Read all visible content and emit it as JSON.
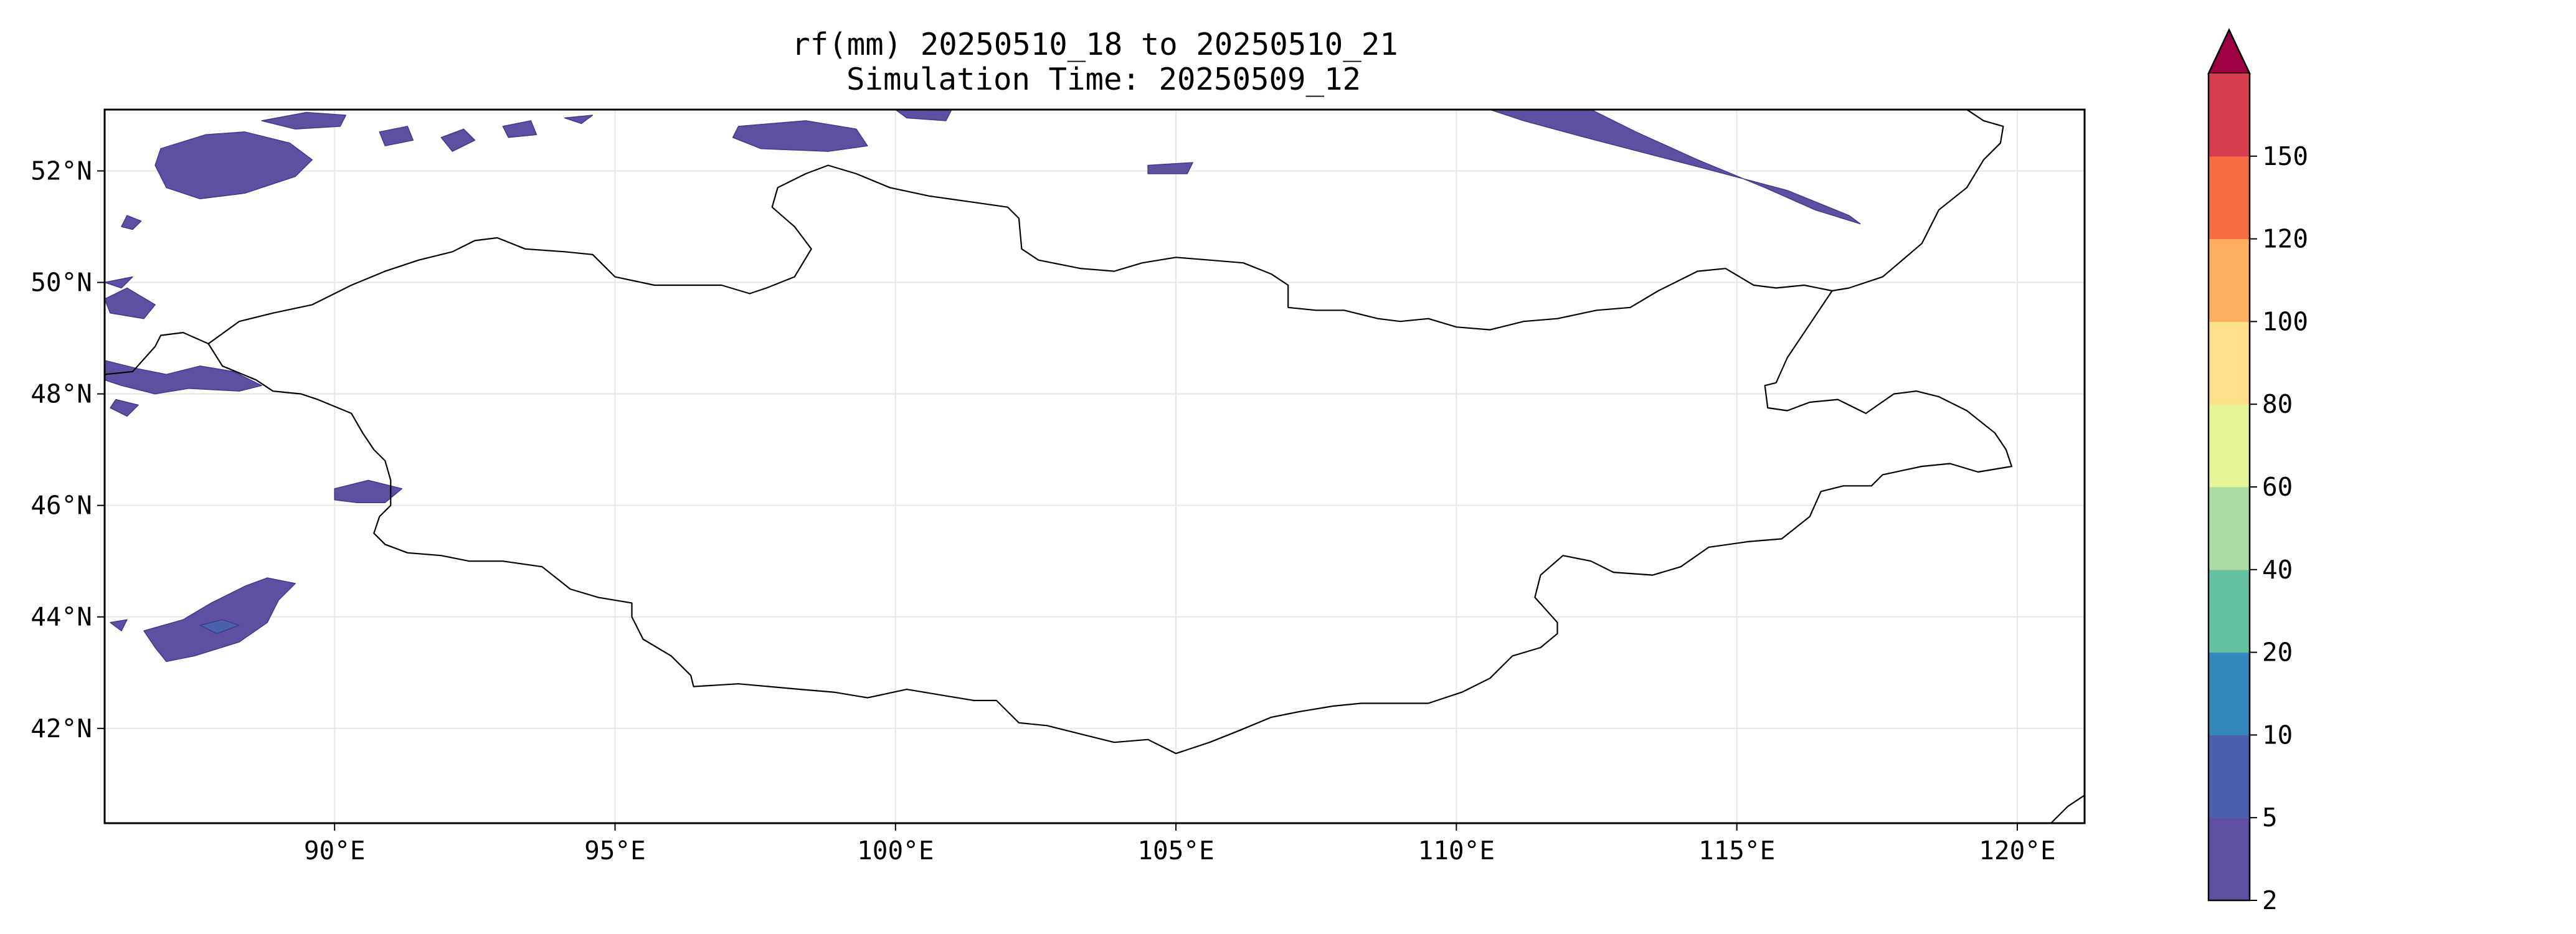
{
  "title": {
    "line1": "rf(mm) 20250510_18 to 20250510_21",
    "line2": "Simulation Time: 20250509_12"
  },
  "map": {
    "projection": "PlateCarree",
    "extent": {
      "lon_min": 85.9,
      "lon_max": 121.2,
      "lat_min": 40.3,
      "lat_max": 53.1
    },
    "gridlines": true,
    "variable": "rf",
    "units": "mm",
    "lon_ticks": [
      {
        "value": 90,
        "label": "90°E"
      },
      {
        "value": 95,
        "label": "95°E"
      },
      {
        "value": 100,
        "label": "100°E"
      },
      {
        "value": 105,
        "label": "105°E"
      },
      {
        "value": 110,
        "label": "110°E"
      },
      {
        "value": 115,
        "label": "115°E"
      },
      {
        "value": 120,
        "label": "120°E"
      }
    ],
    "lat_ticks": [
      {
        "value": 52,
        "label": "52°N"
      },
      {
        "value": 50,
        "label": "50°N"
      },
      {
        "value": 48,
        "label": "48°N"
      },
      {
        "value": 46,
        "label": "46°N"
      },
      {
        "value": 44,
        "label": "44°N"
      },
      {
        "value": 42,
        "label": "42°N"
      }
    ],
    "mongolia_border": [
      [
        87.75,
        48.9
      ],
      [
        88.3,
        49.3
      ],
      [
        88.9,
        49.45
      ],
      [
        89.6,
        49.6
      ],
      [
        90.3,
        49.95
      ],
      [
        90.9,
        50.2
      ],
      [
        91.5,
        50.4
      ],
      [
        92.1,
        50.55
      ],
      [
        92.5,
        50.75
      ],
      [
        92.9,
        50.8
      ],
      [
        93.4,
        50.6
      ],
      [
        94.1,
        50.55
      ],
      [
        94.6,
        50.5
      ],
      [
        95.0,
        50.1
      ],
      [
        95.7,
        49.95
      ],
      [
        96.3,
        49.95
      ],
      [
        96.9,
        49.95
      ],
      [
        97.4,
        49.8
      ],
      [
        97.7,
        49.9
      ],
      [
        98.2,
        50.1
      ],
      [
        98.5,
        50.6
      ],
      [
        98.2,
        51.0
      ],
      [
        97.8,
        51.35
      ],
      [
        97.9,
        51.7
      ],
      [
        98.4,
        51.95
      ],
      [
        98.8,
        52.1
      ],
      [
        99.3,
        51.95
      ],
      [
        99.9,
        51.7
      ],
      [
        100.6,
        51.55
      ],
      [
        101.3,
        51.45
      ],
      [
        102.0,
        51.35
      ],
      [
        102.2,
        51.15
      ],
      [
        102.25,
        50.6
      ],
      [
        102.55,
        50.4
      ],
      [
        103.3,
        50.25
      ],
      [
        103.9,
        50.2
      ],
      [
        104.4,
        50.35
      ],
      [
        105.0,
        50.45
      ],
      [
        105.6,
        50.4
      ],
      [
        106.2,
        50.35
      ],
      [
        106.7,
        50.15
      ],
      [
        107.0,
        49.95
      ],
      [
        107.0,
        49.55
      ],
      [
        107.5,
        49.5
      ],
      [
        108.0,
        49.5
      ],
      [
        108.6,
        49.35
      ],
      [
        109.0,
        49.3
      ],
      [
        109.5,
        49.35
      ],
      [
        110.0,
        49.2
      ],
      [
        110.6,
        49.15
      ],
      [
        111.2,
        49.3
      ],
      [
        111.8,
        49.35
      ],
      [
        112.5,
        49.5
      ],
      [
        113.1,
        49.55
      ],
      [
        113.6,
        49.85
      ],
      [
        114.3,
        50.2
      ],
      [
        114.8,
        50.25
      ],
      [
        115.3,
        49.95
      ],
      [
        115.7,
        49.9
      ],
      [
        116.2,
        49.95
      ],
      [
        116.7,
        49.85
      ],
      [
        116.3,
        49.25
      ],
      [
        115.9,
        48.65
      ],
      [
        115.7,
        48.2
      ],
      [
        115.5,
        48.15
      ],
      [
        115.55,
        47.75
      ],
      [
        115.9,
        47.7
      ],
      [
        116.3,
        47.85
      ],
      [
        116.8,
        47.9
      ],
      [
        117.3,
        47.65
      ],
      [
        117.8,
        48.0
      ],
      [
        118.2,
        48.05
      ],
      [
        118.6,
        47.95
      ],
      [
        119.1,
        47.7
      ],
      [
        119.6,
        47.3
      ],
      [
        119.8,
        47.0
      ],
      [
        119.9,
        46.7
      ],
      [
        119.3,
        46.6
      ],
      [
        118.8,
        46.75
      ],
      [
        118.3,
        46.7
      ],
      [
        117.6,
        46.55
      ],
      [
        117.4,
        46.35
      ],
      [
        116.9,
        46.35
      ],
      [
        116.5,
        46.25
      ],
      [
        116.3,
        45.8
      ],
      [
        115.8,
        45.4
      ],
      [
        115.2,
        45.35
      ],
      [
        114.5,
        45.25
      ],
      [
        114.0,
        44.9
      ],
      [
        113.5,
        44.75
      ],
      [
        112.8,
        44.8
      ],
      [
        112.4,
        45.0
      ],
      [
        111.9,
        45.1
      ],
      [
        111.5,
        44.75
      ],
      [
        111.4,
        44.35
      ],
      [
        111.8,
        43.9
      ],
      [
        111.8,
        43.7
      ],
      [
        111.5,
        43.45
      ],
      [
        111.0,
        43.3
      ],
      [
        110.6,
        42.9
      ],
      [
        110.1,
        42.65
      ],
      [
        109.5,
        42.45
      ],
      [
        108.9,
        42.45
      ],
      [
        108.3,
        42.45
      ],
      [
        107.8,
        42.4
      ],
      [
        107.2,
        42.3
      ],
      [
        106.7,
        42.2
      ],
      [
        106.1,
        41.95
      ],
      [
        105.6,
        41.75
      ],
      [
        105.0,
        41.55
      ],
      [
        104.5,
        41.8
      ],
      [
        103.9,
        41.75
      ],
      [
        103.3,
        41.9
      ],
      [
        102.7,
        42.05
      ],
      [
        102.2,
        42.1
      ],
      [
        101.8,
        42.5
      ],
      [
        101.4,
        42.5
      ],
      [
        100.8,
        42.6
      ],
      [
        100.2,
        42.7
      ],
      [
        99.5,
        42.55
      ],
      [
        98.9,
        42.65
      ],
      [
        98.3,
        42.7
      ],
      [
        97.2,
        42.8
      ],
      [
        96.4,
        42.75
      ],
      [
        96.35,
        42.95
      ],
      [
        96.0,
        43.3
      ],
      [
        95.5,
        43.6
      ],
      [
        95.3,
        44.0
      ],
      [
        95.3,
        44.25
      ],
      [
        94.7,
        44.35
      ],
      [
        94.2,
        44.5
      ],
      [
        93.7,
        44.9
      ],
      [
        93.0,
        45.0
      ],
      [
        92.4,
        45.0
      ],
      [
        91.9,
        45.1
      ],
      [
        91.3,
        45.15
      ],
      [
        90.9,
        45.3
      ],
      [
        90.7,
        45.5
      ],
      [
        90.8,
        45.8
      ],
      [
        91.0,
        46.0
      ],
      [
        91.0,
        46.45
      ],
      [
        90.9,
        46.8
      ],
      [
        90.7,
        47.0
      ],
      [
        90.5,
        47.3
      ],
      [
        90.3,
        47.65
      ],
      [
        89.7,
        47.9
      ],
      [
        89.4,
        48.0
      ],
      [
        88.9,
        48.05
      ],
      [
        88.6,
        48.25
      ],
      [
        88.0,
        48.5
      ],
      [
        87.75,
        48.9
      ]
    ],
    "china_kazakh_border": [
      [
        85.9,
        48.35
      ],
      [
        86.4,
        48.4
      ],
      [
        86.8,
        48.85
      ],
      [
        86.9,
        49.05
      ],
      [
        87.3,
        49.1
      ],
      [
        87.75,
        48.9
      ]
    ],
    "northeast_coast": [
      [
        119.1,
        53.1
      ],
      [
        119.4,
        52.9
      ],
      [
        119.75,
        52.8
      ],
      [
        119.7,
        52.5
      ],
      [
        119.4,
        52.2
      ],
      [
        119.1,
        51.7
      ],
      [
        118.6,
        51.3
      ],
      [
        118.3,
        50.7
      ],
      [
        117.6,
        50.1
      ],
      [
        117.0,
        49.9
      ],
      [
        116.7,
        49.85
      ]
    ],
    "southeast_corner": [
      [
        120.6,
        40.3
      ],
      [
        120.9,
        40.6
      ],
      [
        121.2,
        40.8
      ]
    ],
    "precipitation": [
      {
        "level": "2-5",
        "points": [
          [
            86.9,
            52.4
          ],
          [
            87.7,
            52.65
          ],
          [
            88.4,
            52.7
          ],
          [
            89.2,
            52.5
          ],
          [
            89.6,
            52.2
          ],
          [
            89.3,
            51.9
          ],
          [
            88.4,
            51.6
          ],
          [
            87.6,
            51.5
          ],
          [
            87.0,
            51.7
          ],
          [
            86.8,
            52.1
          ]
        ]
      },
      {
        "level": "2-5",
        "points": [
          [
            88.7,
            52.9
          ],
          [
            89.5,
            53.05
          ],
          [
            90.2,
            53.0
          ],
          [
            90.1,
            52.8
          ],
          [
            89.3,
            52.75
          ]
        ]
      },
      {
        "level": "2-5",
        "points": [
          [
            90.8,
            52.7
          ],
          [
            91.3,
            52.8
          ],
          [
            91.4,
            52.55
          ],
          [
            90.9,
            52.45
          ]
        ]
      },
      {
        "level": "2-5",
        "points": [
          [
            91.9,
            52.6
          ],
          [
            92.3,
            52.75
          ],
          [
            92.5,
            52.55
          ],
          [
            92.1,
            52.35
          ]
        ]
      },
      {
        "level": "2-5",
        "points": [
          [
            93.0,
            52.8
          ],
          [
            93.5,
            52.9
          ],
          [
            93.6,
            52.65
          ],
          [
            93.1,
            52.6
          ]
        ]
      },
      {
        "level": "2-5",
        "points": [
          [
            94.1,
            52.95
          ],
          [
            94.6,
            53.0
          ],
          [
            94.4,
            52.85
          ]
        ]
      },
      {
        "level": "2-5",
        "points": [
          [
            86.3,
            51.2
          ],
          [
            86.55,
            51.1
          ],
          [
            86.4,
            50.95
          ],
          [
            86.2,
            51.0
          ]
        ]
      },
      {
        "level": "2-5",
        "points": [
          [
            97.2,
            52.8
          ],
          [
            98.4,
            52.9
          ],
          [
            99.3,
            52.75
          ],
          [
            99.5,
            52.45
          ],
          [
            98.8,
            52.35
          ],
          [
            97.6,
            52.4
          ],
          [
            97.1,
            52.6
          ]
        ]
      },
      {
        "level": "2-5",
        "points": [
          [
            100.0,
            53.1
          ],
          [
            101.0,
            53.1
          ],
          [
            100.9,
            52.9
          ],
          [
            100.2,
            52.95
          ]
        ]
      },
      {
        "level": "2-5",
        "points": [
          [
            104.5,
            52.1
          ],
          [
            105.3,
            52.15
          ],
          [
            105.2,
            51.95
          ],
          [
            104.5,
            51.95
          ]
        ]
      },
      {
        "level": "2-5",
        "points": [
          [
            110.6,
            53.1
          ],
          [
            112.4,
            53.1
          ],
          [
            113.2,
            52.7
          ],
          [
            114.3,
            52.2
          ],
          [
            115.5,
            51.7
          ],
          [
            116.4,
            51.3
          ],
          [
            117.2,
            51.05
          ],
          [
            117.0,
            51.2
          ],
          [
            115.9,
            51.65
          ],
          [
            114.4,
            52.05
          ],
          [
            112.3,
            52.6
          ],
          [
            111.2,
            52.9
          ]
        ]
      },
      {
        "level": "2-5",
        "points": [
          [
            85.9,
            49.7
          ],
          [
            86.3,
            49.9
          ],
          [
            86.8,
            49.6
          ],
          [
            86.6,
            49.35
          ],
          [
            86.0,
            49.45
          ]
        ]
      },
      {
        "level": "2-5",
        "points": [
          [
            85.9,
            50.0
          ],
          [
            86.4,
            50.1
          ],
          [
            86.2,
            49.9
          ]
        ]
      },
      {
        "level": "2-5",
        "points": [
          [
            85.9,
            48.6
          ],
          [
            86.5,
            48.45
          ],
          [
            87.0,
            48.35
          ],
          [
            87.6,
            48.5
          ],
          [
            88.2,
            48.4
          ],
          [
            88.7,
            48.15
          ],
          [
            88.3,
            48.05
          ],
          [
            87.4,
            48.1
          ],
          [
            86.8,
            48.0
          ],
          [
            86.2,
            48.15
          ],
          [
            85.9,
            48.25
          ]
        ]
      },
      {
        "level": "2-5",
        "points": [
          [
            86.1,
            47.9
          ],
          [
            86.5,
            47.8
          ],
          [
            86.3,
            47.6
          ],
          [
            86.0,
            47.75
          ]
        ]
      },
      {
        "level": "2-5",
        "points": [
          [
            90.0,
            46.3
          ],
          [
            90.6,
            46.45
          ],
          [
            91.2,
            46.3
          ],
          [
            90.9,
            46.05
          ],
          [
            90.4,
            46.05
          ],
          [
            90.0,
            46.1
          ]
        ]
      },
      {
        "level": "2-5",
        "points": [
          [
            86.6,
            43.75
          ],
          [
            87.3,
            43.95
          ],
          [
            87.8,
            44.25
          ],
          [
            88.4,
            44.55
          ],
          [
            88.8,
            44.7
          ],
          [
            89.3,
            44.6
          ],
          [
            89.0,
            44.3
          ],
          [
            88.8,
            43.9
          ],
          [
            88.3,
            43.55
          ],
          [
            87.5,
            43.3
          ],
          [
            87.0,
            43.2
          ],
          [
            86.8,
            43.45
          ]
        ]
      },
      {
        "level": "2-5",
        "points": [
          [
            86.0,
            43.9
          ],
          [
            86.3,
            43.95
          ],
          [
            86.2,
            43.75
          ]
        ]
      },
      {
        "level": "5-10",
        "points": [
          [
            87.6,
            43.85
          ],
          [
            88.0,
            43.95
          ],
          [
            88.3,
            43.85
          ],
          [
            87.9,
            43.7
          ]
        ]
      }
    ]
  },
  "colorbar": {
    "levels": [
      2,
      5,
      10,
      20,
      40,
      60,
      80,
      100,
      120,
      150
    ],
    "labels": [
      "2",
      "5",
      "10",
      "20",
      "40",
      "60",
      "80",
      "100",
      "120",
      "150"
    ],
    "colors": [
      "#5e4fa2",
      "#4a61ad",
      "#3288bd",
      "#66c2a5",
      "#abdda4",
      "#e6f598",
      "#fee08b",
      "#fdae61",
      "#f46d43",
      "#d53e4f"
    ],
    "extend_color": "#9e0142",
    "extend": "max"
  },
  "style": {
    "border_color": "#000000",
    "grid_color": "#e6e6e6",
    "precip_stroke": "#3f3a8a"
  }
}
